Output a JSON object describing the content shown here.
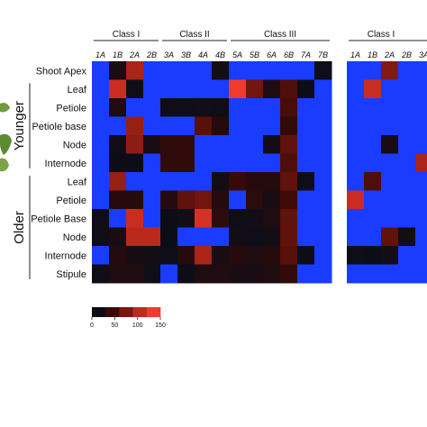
{
  "chart_data": {
    "type": "heatmap",
    "group_labels": [
      "Younger",
      "Older"
    ],
    "rows": [
      "Shoot Apex",
      "Leaf",
      "Petiole",
      "Petiole base",
      "Node",
      "Internode",
      "Leaf",
      "Petiole",
      "Petiole Base",
      "Node",
      "Internode",
      "Stipule"
    ],
    "row_groups": [
      "",
      "Younger",
      "Younger",
      "Younger",
      "Younger",
      "Younger",
      "Older",
      "Older",
      "Older",
      "Older",
      "Older",
      "Older"
    ],
    "columns": [
      "1A",
      "1B",
      "2A",
      "2B",
      "3A",
      "3B",
      "4A",
      "4B",
      "5A",
      "5B",
      "6A",
      "6B",
      "7A",
      "7B"
    ],
    "classes": [
      {
        "name": "Class I",
        "columns": [
          "1A",
          "1B",
          "2A",
          "2B"
        ]
      },
      {
        "name": "Class II",
        "columns": [
          "3A",
          "3B",
          "4A",
          "4B"
        ]
      },
      {
        "name": "Class III",
        "columns": [
          "5A",
          "5B",
          "6A",
          "6B",
          "7A",
          "7B"
        ]
      }
    ],
    "values": [
      [
        -1,
        10,
        100,
        -1,
        -1,
        -1,
        -1,
        5,
        -1,
        -1,
        -1,
        -1,
        -1,
        2
      ],
      [
        -1,
        120,
        3,
        -1,
        -1,
        -1,
        -1,
        -1,
        150,
        70,
        15,
        50,
        0,
        -1
      ],
      [
        -1,
        15,
        -1,
        -1,
        3,
        2,
        4,
        1,
        -1,
        -1,
        -1,
        45,
        -1,
        -1
      ],
      [
        -1,
        -1,
        90,
        -1,
        -1,
        -1,
        55,
        20,
        -1,
        -1,
        -1,
        30,
        -1,
        -1
      ],
      [
        -1,
        2,
        85,
        10,
        30,
        30,
        -1,
        -1,
        -1,
        -1,
        5,
        60,
        -1,
        -1
      ],
      [
        -1,
        0,
        0,
        -1,
        30,
        30,
        -1,
        -1,
        -1,
        -1,
        -1,
        50,
        -1,
        -1
      ],
      [
        -1,
        90,
        -1,
        -1,
        -1,
        -1,
        -1,
        5,
        35,
        20,
        20,
        60,
        3,
        -1
      ],
      [
        -1,
        20,
        20,
        -1,
        20,
        60,
        70,
        20,
        -1,
        25,
        10,
        40,
        -1,
        -1
      ],
      [
        2,
        -1,
        120,
        -1,
        0,
        5,
        130,
        25,
        1,
        4,
        15,
        60,
        -1,
        -1
      ],
      [
        1,
        10,
        110,
        110,
        0,
        -1,
        -1,
        -1,
        5,
        2,
        5,
        60,
        -1,
        -1
      ],
      [
        -1,
        20,
        8,
        5,
        2,
        20,
        100,
        10,
        20,
        15,
        20,
        55,
        0,
        -1
      ],
      [
        2,
        15,
        15,
        2,
        -1,
        0,
        15,
        15,
        10,
        10,
        15,
        30,
        -1,
        -1
      ]
    ],
    "partial_panel": {
      "class_label": "Class I",
      "columns": [
        "1A",
        "1B",
        "2A",
        "2B",
        "3A"
      ],
      "values": [
        [
          -1,
          -1,
          80,
          -1,
          -1
        ],
        [
          -1,
          120,
          -1,
          -1,
          -1
        ],
        [
          -1,
          -1,
          -1,
          -1,
          -1
        ],
        [
          -1,
          -1,
          -1,
          -1,
          -1
        ],
        [
          -1,
          -1,
          10,
          -1,
          -1
        ],
        [
          -1,
          -1,
          -1,
          -1,
          100
        ],
        [
          -1,
          50,
          -1,
          -1,
          -1
        ],
        [
          120,
          -1,
          -1,
          -1,
          -1
        ],
        [
          -1,
          -1,
          -1,
          -1,
          -1
        ],
        [
          -1,
          -1,
          60,
          5,
          -1
        ],
        [
          2,
          0,
          5,
          -1,
          -1
        ],
        [
          -1,
          -1,
          -1,
          -1,
          -1
        ]
      ]
    },
    "missing_color": "#1a3cff",
    "color_scale": {
      "stops": [
        "#0d0d18",
        "#3a0a06",
        "#7a1710",
        "#c02a1e",
        "#ee3b2e"
      ],
      "ticks": [
        0,
        50,
        100,
        150
      ],
      "range": [
        0,
        150
      ]
    }
  }
}
